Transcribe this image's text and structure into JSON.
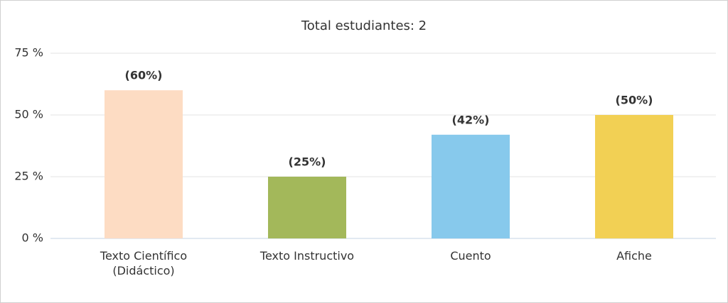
{
  "chart_data": {
    "type": "bar",
    "title": "Total estudiantes: 2",
    "categories": [
      "Texto Científico (Didáctico)",
      "Texto Instructivo",
      "Cuento",
      "Afiche"
    ],
    "values": [
      60,
      25,
      42,
      50
    ],
    "value_labels": [
      "(60%)",
      "(25%)",
      "(42%)",
      "(50%)"
    ],
    "colors": [
      "#fddcc3",
      "#a3b85a",
      "#87c9ec",
      "#f2d054"
    ],
    "ylim": [
      0,
      75
    ],
    "yticks": [
      {
        "value": 0,
        "label": "0 %"
      },
      {
        "value": 25,
        "label": "25 %"
      },
      {
        "value": 50,
        "label": "50 %"
      },
      {
        "value": 75,
        "label": "75 %"
      }
    ],
    "grid": true
  }
}
